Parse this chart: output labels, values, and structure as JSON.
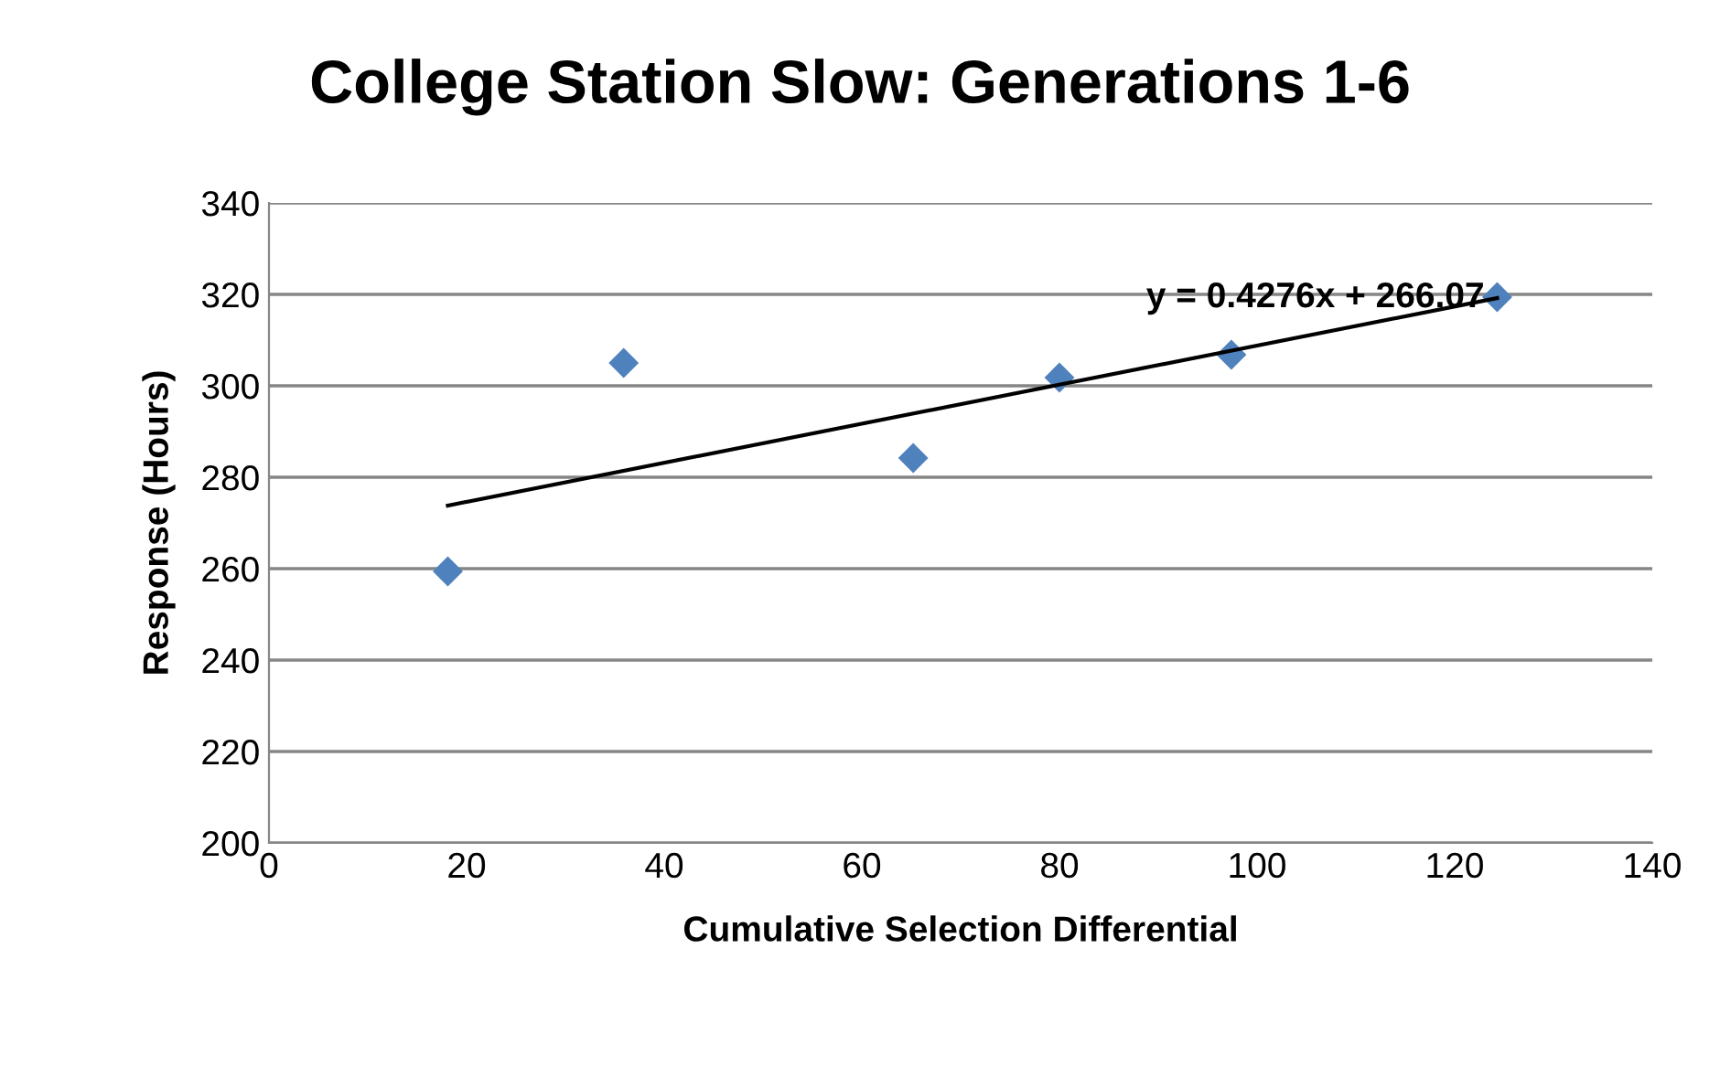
{
  "chart_data": {
    "type": "scatter",
    "title": "College Station Slow: Generations 1-6",
    "xlabel": "Cumulative Selection Differential",
    "ylabel": "Response (Hours)",
    "series": [
      {
        "color": "#4f81bd",
        "x": [
          18.1,
          35.9,
          65.2,
          80,
          97.4,
          124.3
        ],
        "values": [
          259.4,
          305,
          284.2,
          301.8,
          306.8,
          319.4
        ],
        "marker": "diamond"
      },
      {
        "type": "line",
        "color": "#000000",
        "x": [
          18.1,
          124.3
        ],
        "values": [
          273.8,
          319.2
        ],
        "marker": "none",
        "line_style": "solid"
      }
    ],
    "annotations": [
      {
        "text": "y = 0.4276x + 266.07",
        "x": 124.3,
        "y": 319.2
      }
    ],
    "xlim": [
      0,
      140
    ],
    "xticks": [
      0,
      20,
      40,
      60,
      80,
      100,
      120,
      140
    ],
    "ylim": [
      200,
      340
    ],
    "yticks": [
      200,
      220,
      240,
      260,
      280,
      300,
      320,
      340
    ],
    "grid": "y",
    "legend": false
  }
}
